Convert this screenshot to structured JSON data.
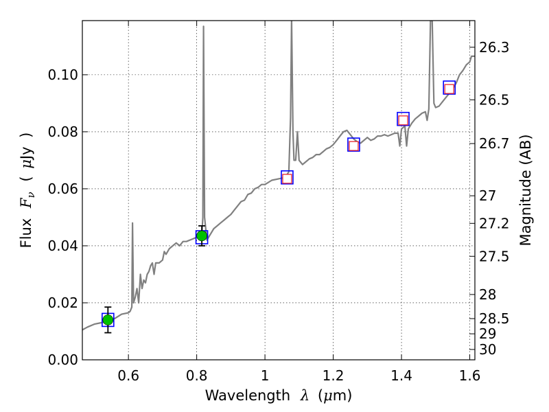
{
  "chart_data": {
    "type": "line",
    "title": "",
    "xlabel_prefix": "Wavelength",
    "xlabel_symbol": "λ",
    "xlabel_unit_open": "(",
    "xlabel_unit_mu": "μ",
    "xlabel_unit_rest": "m)",
    "ylabel_prefix": "Flux",
    "ylabel_symbol": "F",
    "ylabel_sub": "ν",
    "ylabel_unit_open": "(",
    "ylabel_unit_mu": "μ",
    "ylabel_unit_rest": "Jy",
    "ylabel_unit_close": ")",
    "y2label": "Magnitude (AB)",
    "xlim": [
      0.465,
      1.615
    ],
    "ylim": [
      0.0,
      0.119
    ],
    "grid": true,
    "x_ticks": [
      0.6,
      0.8,
      1.0,
      1.2,
      1.4,
      1.6
    ],
    "x_tick_labels": [
      "0.6",
      "0.8",
      "1",
      "1.2",
      "1.4",
      "1.6"
    ],
    "y_ticks": [
      0.0,
      0.02,
      0.04,
      0.06,
      0.08,
      0.1
    ],
    "y_tick_labels": [
      "0.00",
      "0.02",
      "0.04",
      "0.06",
      "0.08",
      "0.10"
    ],
    "mag_ticks": [
      26.3,
      26.5,
      26.7,
      27,
      27.2,
      27.5,
      28,
      28.5,
      29,
      30
    ],
    "mag_tick_labels": [
      "26.3",
      "26.5",
      "26.7",
      "27",
      "27.2",
      "27.5",
      "28",
      "28.5",
      "29",
      "30"
    ],
    "series": [
      {
        "kind": "spectrum",
        "color": "#808080",
        "points": [
          [
            0.465,
            0.0105
          ],
          [
            0.48,
            0.0115
          ],
          [
            0.5,
            0.0125
          ],
          [
            0.52,
            0.013
          ],
          [
            0.54,
            0.0135
          ],
          [
            0.56,
            0.0145
          ],
          [
            0.58,
            0.016
          ],
          [
            0.6,
            0.0165
          ],
          [
            0.605,
            0.017
          ],
          [
            0.61,
            0.0185
          ],
          [
            0.612,
            0.048
          ],
          [
            0.615,
            0.02
          ],
          [
            0.62,
            0.022
          ],
          [
            0.625,
            0.025
          ],
          [
            0.63,
            0.02
          ],
          [
            0.635,
            0.03
          ],
          [
            0.64,
            0.025
          ],
          [
            0.645,
            0.028
          ],
          [
            0.65,
            0.027
          ],
          [
            0.655,
            0.03
          ],
          [
            0.66,
            0.031
          ],
          [
            0.665,
            0.033
          ],
          [
            0.67,
            0.034
          ],
          [
            0.675,
            0.03
          ],
          [
            0.68,
            0.034
          ],
          [
            0.69,
            0.034
          ],
          [
            0.7,
            0.035
          ],
          [
            0.705,
            0.038
          ],
          [
            0.71,
            0.037
          ],
          [
            0.72,
            0.039
          ],
          [
            0.73,
            0.04
          ],
          [
            0.74,
            0.041
          ],
          [
            0.75,
            0.04
          ],
          [
            0.76,
            0.0415
          ],
          [
            0.77,
            0.0415
          ],
          [
            0.78,
            0.042
          ],
          [
            0.79,
            0.0425
          ],
          [
            0.8,
            0.043
          ],
          [
            0.81,
            0.043
          ],
          [
            0.815,
            0.044
          ],
          [
            0.818,
            0.05
          ],
          [
            0.82,
            0.117
          ],
          [
            0.823,
            0.05
          ],
          [
            0.83,
            0.042
          ],
          [
            0.84,
            0.044
          ],
          [
            0.85,
            0.046
          ],
          [
            0.86,
            0.047
          ],
          [
            0.87,
            0.048
          ],
          [
            0.88,
            0.049
          ],
          [
            0.89,
            0.05
          ],
          [
            0.9,
            0.051
          ],
          [
            0.91,
            0.0525
          ],
          [
            0.92,
            0.054
          ],
          [
            0.93,
            0.0555
          ],
          [
            0.94,
            0.056
          ],
          [
            0.95,
            0.058
          ],
          [
            0.96,
            0.0585
          ],
          [
            0.97,
            0.06
          ],
          [
            0.98,
            0.0605
          ],
          [
            0.99,
            0.0615
          ],
          [
            1.0,
            0.0615
          ],
          [
            1.02,
            0.063
          ],
          [
            1.04,
            0.0635
          ],
          [
            1.06,
            0.064
          ],
          [
            1.07,
            0.066
          ],
          [
            1.075,
            0.085
          ],
          [
            1.078,
            0.12
          ],
          [
            1.08,
            0.1
          ],
          [
            1.082,
            0.08
          ],
          [
            1.085,
            0.07
          ],
          [
            1.09,
            0.07
          ],
          [
            1.095,
            0.08
          ],
          [
            1.1,
            0.07
          ],
          [
            1.11,
            0.0685
          ],
          [
            1.12,
            0.0695
          ],
          [
            1.13,
            0.0705
          ],
          [
            1.14,
            0.071
          ],
          [
            1.15,
            0.072
          ],
          [
            1.16,
            0.072
          ],
          [
            1.17,
            0.073
          ],
          [
            1.18,
            0.074
          ],
          [
            1.19,
            0.0745
          ],
          [
            1.2,
            0.0755
          ],
          [
            1.21,
            0.077
          ],
          [
            1.22,
            0.0785
          ],
          [
            1.23,
            0.08
          ],
          [
            1.24,
            0.0805
          ],
          [
            1.25,
            0.079
          ],
          [
            1.26,
            0.0775
          ],
          [
            1.27,
            0.0765
          ],
          [
            1.28,
            0.076
          ],
          [
            1.29,
            0.077
          ],
          [
            1.3,
            0.078
          ],
          [
            1.31,
            0.077
          ],
          [
            1.32,
            0.0775
          ],
          [
            1.33,
            0.0785
          ],
          [
            1.34,
            0.0785
          ],
          [
            1.35,
            0.079
          ],
          [
            1.36,
            0.0785
          ],
          [
            1.37,
            0.079
          ],
          [
            1.38,
            0.0795
          ],
          [
            1.39,
            0.0795
          ],
          [
            1.395,
            0.075
          ],
          [
            1.4,
            0.081
          ],
          [
            1.41,
            0.082
          ],
          [
            1.415,
            0.075
          ],
          [
            1.42,
            0.081
          ],
          [
            1.43,
            0.083
          ],
          [
            1.44,
            0.0845
          ],
          [
            1.45,
            0.0855
          ],
          [
            1.46,
            0.0865
          ],
          [
            1.47,
            0.087
          ],
          [
            1.475,
            0.084
          ],
          [
            1.48,
            0.088
          ],
          [
            1.485,
            0.119
          ],
          [
            1.49,
            0.119
          ],
          [
            1.495,
            0.09
          ],
          [
            1.5,
            0.0885
          ],
          [
            1.51,
            0.089
          ],
          [
            1.52,
            0.0905
          ],
          [
            1.53,
            0.092
          ],
          [
            1.54,
            0.0935
          ],
          [
            1.55,
            0.095
          ],
          [
            1.56,
            0.097
          ],
          [
            1.57,
            0.1
          ],
          [
            1.58,
            0.1015
          ],
          [
            1.59,
            0.1035
          ],
          [
            1.6,
            0.1045
          ],
          [
            1.605,
            0.1065
          ],
          [
            1.615,
            0.1065
          ]
        ]
      },
      {
        "kind": "model_photometry",
        "color": "#0000ff",
        "points": [
          [
            0.54,
            0.014
          ],
          [
            0.815,
            0.043
          ],
          [
            1.065,
            0.064
          ],
          [
            1.26,
            0.0755
          ],
          [
            1.405,
            0.0845
          ],
          [
            1.54,
            0.0955
          ]
        ]
      },
      {
        "kind": "observed_photometry",
        "color": "#e8262e",
        "points": [
          [
            1.065,
            0.0635
          ],
          [
            1.26,
            0.075
          ],
          [
            1.405,
            0.084
          ],
          [
            1.54,
            0.095
          ]
        ]
      },
      {
        "kind": "detections",
        "color": "#00c000",
        "points": [
          [
            0.54,
            0.014
          ],
          [
            0.815,
            0.0435
          ]
        ],
        "errors": [
          0.0045,
          0.0035
        ]
      }
    ]
  }
}
